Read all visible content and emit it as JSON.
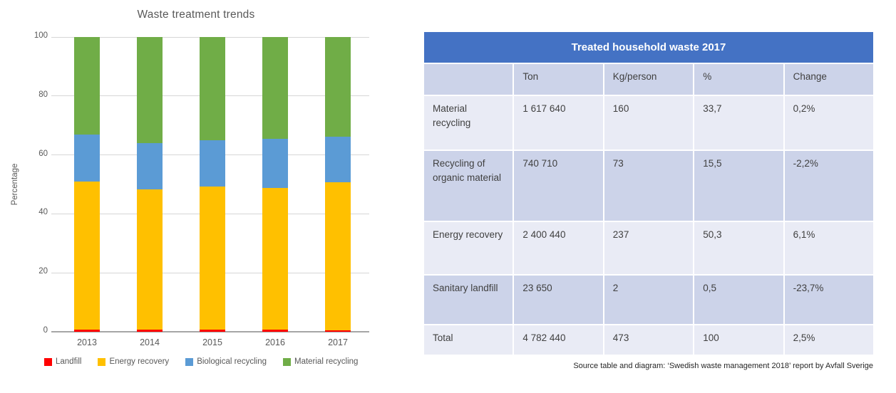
{
  "chart_data": [
    {
      "type": "bar",
      "stacked": true,
      "title": "Waste treatment trends",
      "categories": [
        "2013",
        "2014",
        "2015",
        "2016",
        "2017"
      ],
      "series": [
        {
          "name": "Landfill",
          "color": "#ff0000",
          "values": [
            0.7,
            0.8,
            0.8,
            0.7,
            0.5
          ]
        },
        {
          "name": "Energy recovery",
          "color": "#ffc000",
          "values": [
            50.2,
            47.6,
            48.5,
            48.2,
            50.3
          ]
        },
        {
          "name": "Biological recycling",
          "color": "#5b9bd5",
          "values": [
            16.0,
            15.7,
            15.6,
            16.5,
            15.5
          ]
        },
        {
          "name": "Material recycling",
          "color": "#70ad47",
          "values": [
            33.1,
            35.9,
            35.1,
            34.6,
            33.7
          ]
        }
      ],
      "xlabel": "",
      "ylabel": "Percentage",
      "ylim": [
        0,
        100
      ],
      "yticks": [
        0,
        20,
        40,
        60,
        80,
        100
      ],
      "grid": true,
      "legend_position": "bottom"
    },
    {
      "type": "table",
      "title": "Treated household waste 2017",
      "columns": [
        "",
        "Ton",
        "Kg/person",
        "%",
        "Change"
      ],
      "rows": [
        [
          "Material recycling",
          "1 617 640",
          "160",
          "33,7",
          "0,2%"
        ],
        [
          "Recycling of organic material",
          "740 710",
          "73",
          "15,5",
          "-2,2%"
        ],
        [
          "Energy recovery",
          "2 400 440",
          "237",
          "50,3",
          "6,1%"
        ],
        [
          "Sanitary landfill",
          "23 650",
          "2",
          "0,5",
          "-23,7%"
        ],
        [
          "Total",
          "4 782 440",
          "473",
          "100",
          "2,5%"
        ]
      ]
    }
  ],
  "source_note": "Source table and diagram: ‘Swedish waste management 2018’ report by Avfall Sverige",
  "colors": {
    "table_header": "#4472c4",
    "table_row_dark": "#ccd3e9",
    "table_row_light": "#e9ebf5",
    "chart_text": "#595959",
    "gridline": "#d6d6d6",
    "axis_line": "#a6a6a6"
  }
}
